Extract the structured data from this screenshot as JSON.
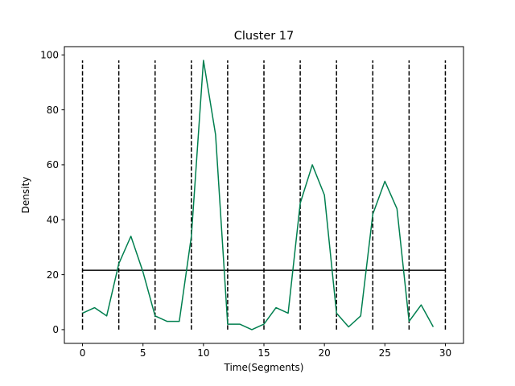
{
  "chart_data": {
    "type": "line",
    "title": "Cluster 17",
    "xlabel": "Time(Segments)",
    "ylabel": "Density",
    "xlim": [
      -1.5,
      31.5
    ],
    "ylim": [
      -5,
      103
    ],
    "xticks": [
      0,
      5,
      10,
      15,
      20,
      25,
      30
    ],
    "yticks": [
      0,
      20,
      40,
      60,
      80,
      100
    ],
    "grid": false,
    "series": [
      {
        "color": "#007f4f",
        "x": [
          0,
          1,
          2,
          3,
          4,
          5,
          6,
          7,
          8,
          9,
          10,
          11,
          12,
          13,
          14,
          15,
          16,
          17,
          18,
          19,
          20,
          21,
          22,
          23,
          24,
          25,
          26,
          27,
          28,
          29
        ],
        "values": [
          6,
          8,
          5,
          24,
          34,
          21,
          5,
          3,
          3,
          34,
          98,
          71,
          2,
          2,
          0,
          2,
          8,
          6,
          46,
          60,
          49,
          6,
          1,
          5,
          42,
          54,
          44,
          3,
          9,
          1
        ]
      }
    ],
    "vertical_dashed_lines": {
      "x": [
        0,
        3,
        6,
        9,
        12,
        15,
        18,
        21,
        24,
        27,
        30
      ],
      "y_from": 0,
      "y_to": 98,
      "color": "#000000"
    },
    "horizontal_line": {
      "y": 21.6,
      "x_from": 0,
      "x_to": 30,
      "color": "#000000"
    }
  }
}
